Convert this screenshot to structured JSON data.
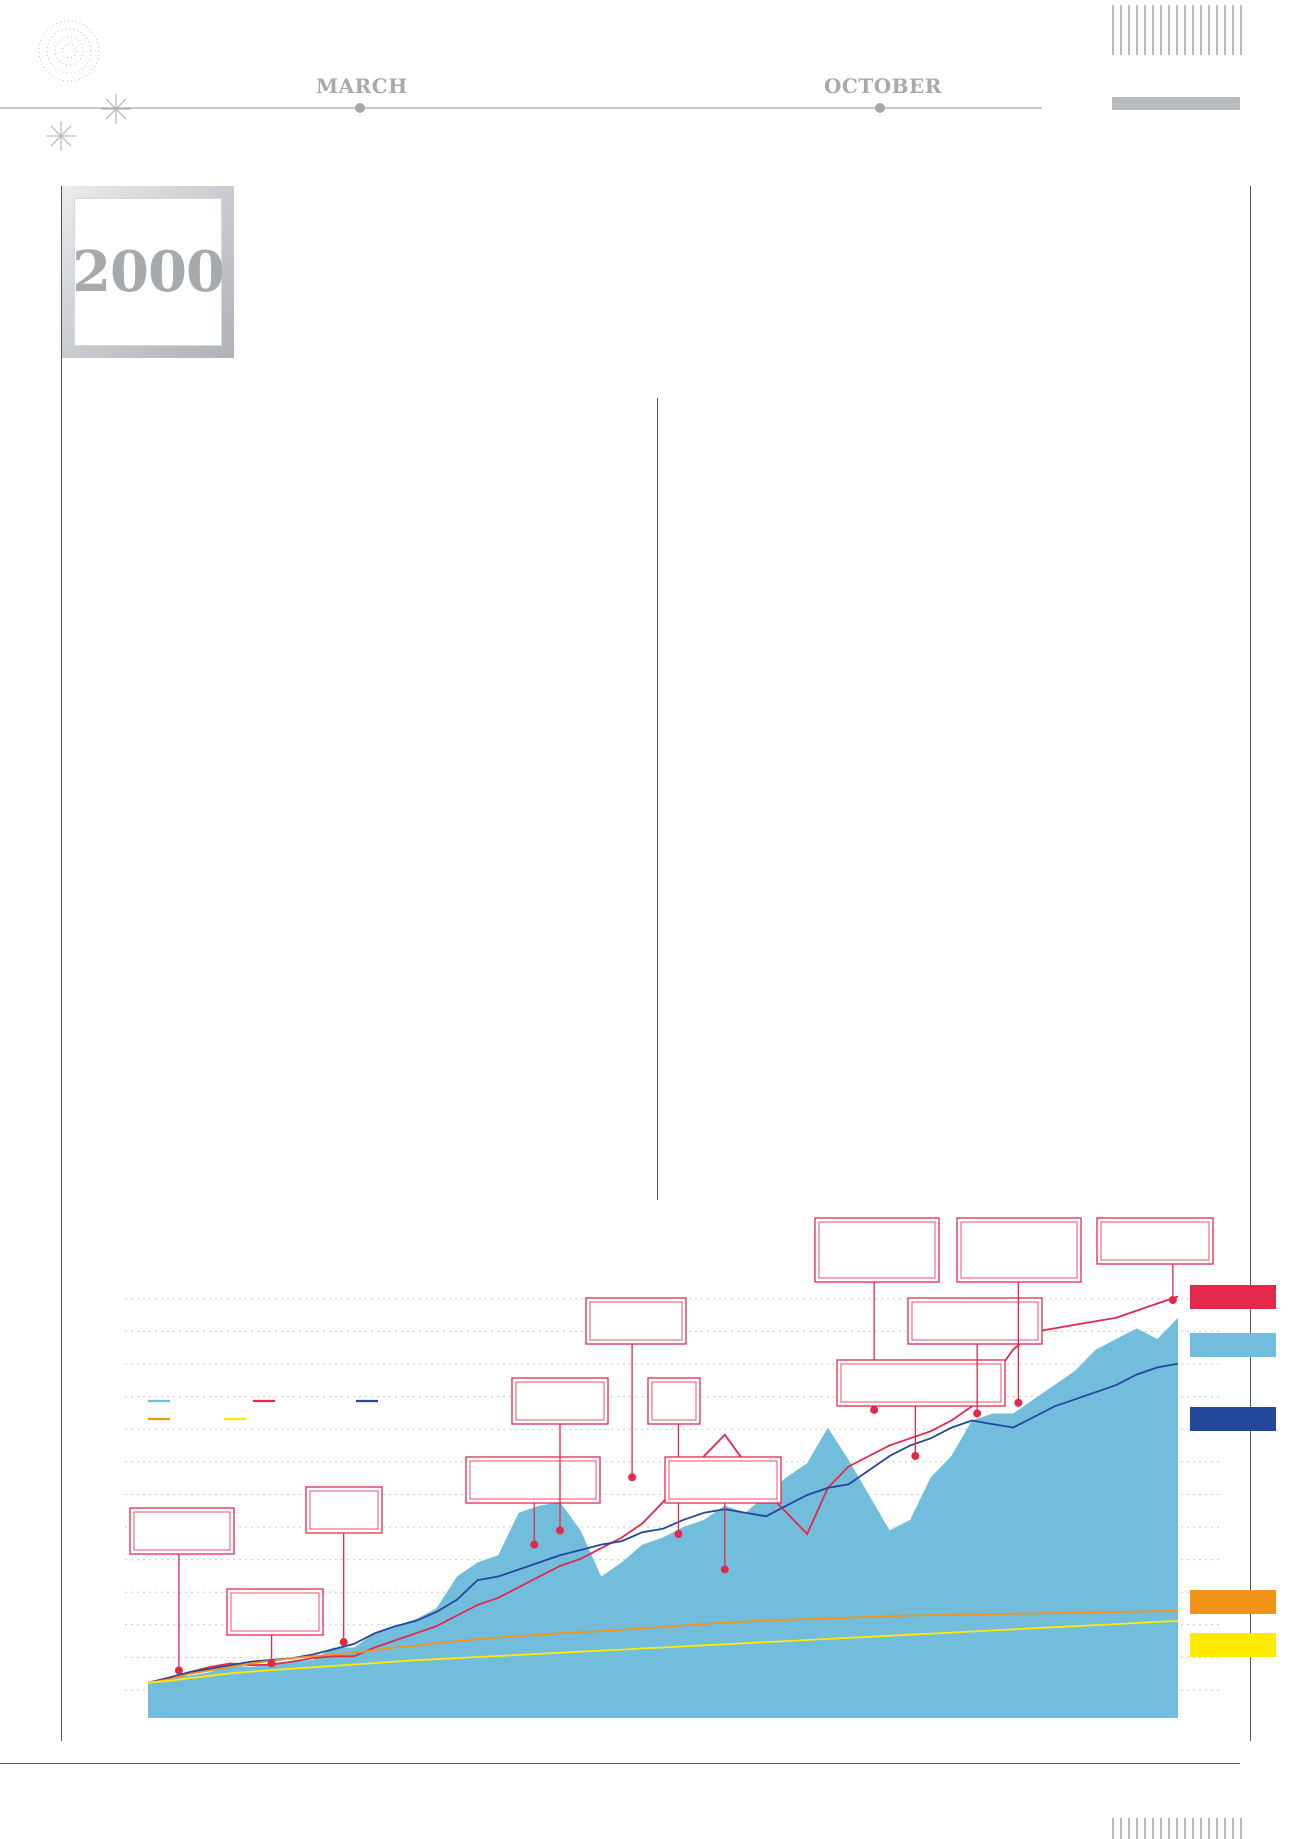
{
  "header": {
    "months": [
      "MARCH",
      "OCTOBER"
    ],
    "year": "2000"
  },
  "colors": {
    "bar_grey": "#b9bcbf",
    "accent_red": "#e3284b",
    "area_blue": "#72bddb",
    "navy": "#23479a",
    "orange": "#f39419",
    "yellow": "#ffea00",
    "grey_text": "#a7aaad"
  },
  "legend_swatches": [
    {
      "name": "red-series",
      "color": "#e3284b"
    },
    {
      "name": "blue-area",
      "color": "#72bddb"
    },
    {
      "name": "navy-series",
      "color": "#23479a"
    },
    {
      "name": "orange-series",
      "color": "#f39419"
    },
    {
      "name": "yellow-series",
      "color": "#ffea00"
    }
  ],
  "chart_data": {
    "type": "area",
    "title": "",
    "xlabel": "",
    "ylabel": "",
    "x": [
      0,
      2,
      4,
      6,
      8,
      10,
      12,
      14,
      16,
      18,
      20,
      22,
      24,
      26,
      28,
      30,
      32,
      34,
      36,
      38,
      40,
      42,
      44,
      46,
      48,
      50,
      52,
      54,
      56,
      58,
      60,
      62,
      64,
      66,
      68,
      70,
      72,
      74,
      76,
      78,
      80,
      82,
      84,
      86,
      88,
      90,
      92,
      94,
      96,
      98,
      100
    ],
    "ylim": [
      0,
      11
    ],
    "grid": true,
    "series": [
      {
        "name": "",
        "kind": "area",
        "color": "#72bddb",
        "values": [
          0.2,
          0.35,
          0.4,
          0.5,
          0.7,
          0.65,
          0.75,
          0.8,
          0.85,
          1.2,
          1.2,
          1.6,
          1.8,
          2.0,
          2.3,
          3.2,
          3.6,
          3.8,
          5.0,
          5.2,
          5.3,
          4.5,
          3.2,
          3.6,
          4.1,
          4.3,
          4.6,
          4.8,
          5.2,
          5.0,
          5.5,
          6.0,
          6.4,
          7.4,
          6.5,
          5.5,
          4.5,
          4.8,
          6.0,
          6.6,
          7.6,
          7.8,
          7.8,
          8.2,
          8.6,
          9.0,
          9.6,
          9.9,
          10.2,
          9.9,
          10.5
        ]
      },
      {
        "name": "",
        "kind": "line",
        "color": "#e3284b",
        "values": [
          0.2,
          0.3,
          0.5,
          0.65,
          0.75,
          0.7,
          0.72,
          0.8,
          0.9,
          0.95,
          0.95,
          1.2,
          1.4,
          1.6,
          1.8,
          2.1,
          2.4,
          2.6,
          2.9,
          3.2,
          3.5,
          3.7,
          4.0,
          4.3,
          4.7,
          5.3,
          6.0,
          6.6,
          7.2,
          6.4,
          5.6,
          5.0,
          4.4,
          5.7,
          6.3,
          6.6,
          6.9,
          7.1,
          7.3,
          7.6,
          8.0,
          8.8,
          9.6,
          10.1,
          10.2,
          10.3,
          10.4,
          10.5,
          10.7,
          10.9,
          11.1
        ]
      },
      {
        "name": "",
        "kind": "line",
        "color": "#23479a",
        "values": [
          0.2,
          0.35,
          0.5,
          0.6,
          0.7,
          0.8,
          0.85,
          0.9,
          1.0,
          1.15,
          1.3,
          1.6,
          1.8,
          1.95,
          2.2,
          2.55,
          3.1,
          3.2,
          3.4,
          3.6,
          3.8,
          3.95,
          4.1,
          4.2,
          4.45,
          4.55,
          4.8,
          5.0,
          5.1,
          5.0,
          4.9,
          5.2,
          5.5,
          5.7,
          5.8,
          6.2,
          6.6,
          6.9,
          7.1,
          7.4,
          7.6,
          7.5,
          7.4,
          7.7,
          8.0,
          8.2,
          8.4,
          8.6,
          8.9,
          9.1,
          9.2
        ]
      },
      {
        "name": "",
        "kind": "line",
        "color": "#f39419",
        "values": [
          0.2,
          0.3,
          0.45,
          0.55,
          0.65,
          0.75,
          0.82,
          0.9,
          0.95,
          1.0,
          1.05,
          1.12,
          1.2,
          1.25,
          1.32,
          1.38,
          1.43,
          1.48,
          1.52,
          1.56,
          1.6,
          1.63,
          1.66,
          1.7,
          1.74,
          1.78,
          1.82,
          1.86,
          1.9,
          1.93,
          1.96,
          1.98,
          2.0,
          2.02,
          2.04,
          2.06,
          2.08,
          2.1,
          2.11,
          2.12,
          2.13,
          2.14,
          2.15,
          2.16,
          2.17,
          2.18,
          2.19,
          2.2,
          2.21,
          2.22,
          2.23
        ]
      },
      {
        "name": "",
        "kind": "line",
        "color": "#ffea00",
        "values": [
          0.2,
          0.26,
          0.33,
          0.4,
          0.47,
          0.52,
          0.56,
          0.6,
          0.64,
          0.68,
          0.72,
          0.76,
          0.8,
          0.84,
          0.87,
          0.9,
          0.93,
          0.96,
          0.99,
          1.02,
          1.05,
          1.08,
          1.11,
          1.14,
          1.17,
          1.2,
          1.23,
          1.26,
          1.29,
          1.32,
          1.35,
          1.38,
          1.41,
          1.44,
          1.47,
          1.5,
          1.53,
          1.56,
          1.59,
          1.62,
          1.65,
          1.68,
          1.71,
          1.74,
          1.77,
          1.8,
          1.83,
          1.86,
          1.89,
          1.92,
          1.95
        ]
      }
    ],
    "annotations": [
      {
        "x": 3,
        "y": 0.55
      },
      {
        "x": 12,
        "y": 0.75
      },
      {
        "x": 19,
        "y": 1.35
      },
      {
        "x": 37.5,
        "y": 4.1
      },
      {
        "x": 40,
        "y": 4.5
      },
      {
        "x": 47,
        "y": 6.0
      },
      {
        "x": 51.5,
        "y": 4.4
      },
      {
        "x": 56,
        "y": 3.4
      },
      {
        "x": 70.5,
        "y": 7.9
      },
      {
        "x": 74.5,
        "y": 6.6
      },
      {
        "x": 80.5,
        "y": 7.8
      },
      {
        "x": 84.5,
        "y": 8.1
      },
      {
        "x": 99.5,
        "y": 11.0
      }
    ],
    "inline_legend": [
      {
        "color": "#72bddb"
      },
      {
        "color": "#e3284b"
      },
      {
        "color": "#23479a"
      },
      {
        "color": "#f39419"
      },
      {
        "color": "#ffea00"
      }
    ]
  }
}
